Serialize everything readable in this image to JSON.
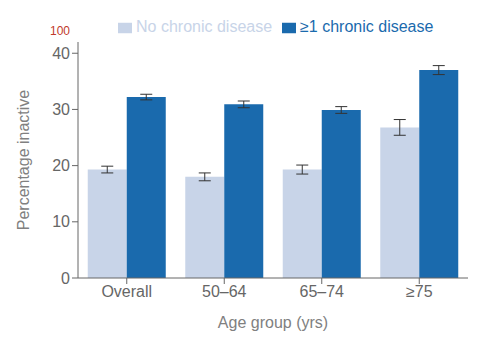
{
  "chart_data": {
    "type": "bar",
    "categories": [
      "Overall",
      "50–64",
      "65–74",
      "≥75"
    ],
    "series": [
      {
        "name": "No chronic disease",
        "color": "#c8d4e8",
        "values": [
          19.3,
          18.0,
          19.3,
          26.8
        ],
        "errors": [
          0.6,
          0.7,
          0.8,
          1.4
        ]
      },
      {
        "name": "≥1 chronic disease",
        "color": "#1a6aad",
        "values": [
          32.2,
          30.9,
          29.9,
          37.0
        ],
        "errors": [
          0.5,
          0.6,
          0.6,
          0.8
        ]
      }
    ],
    "xlabel": "Age group (yrs)",
    "ylabel": "Percentage inactive",
    "ylim": [
      0,
      42
    ],
    "yticks": [
      0,
      10,
      20,
      30,
      40
    ],
    "grid": false,
    "legend": "upper left",
    "annotations": [
      {
        "text": "100",
        "color": "#c0392b"
      }
    ]
  }
}
